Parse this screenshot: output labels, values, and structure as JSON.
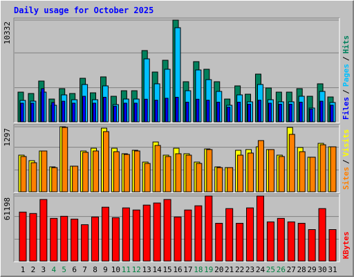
{
  "title": "Daily usage for October 2025",
  "chart_data": [
    {
      "type": "bar",
      "ylim": [
        0,
        10332
      ],
      "yticks": [
        10332
      ],
      "legend_separator": "/",
      "series": [
        {
          "name": "Hits",
          "color": "#00805c",
          "values": [
            3022,
            2882,
            4147,
            2319,
            3374,
            2882,
            4428,
            2952,
            4569,
            2601,
            3163,
            3163,
            7240,
            5061,
            6255,
            10332,
            4077,
            6115,
            5342,
            4077,
            2319,
            3655,
            2811,
            4850,
            3444,
            3022,
            3022,
            3374,
            2601,
            3866,
            2530
          ]
        },
        {
          "name": "Pages",
          "color": "#00c0ff",
          "values": [
            2179,
            2108,
            3022,
            1687,
            2741,
            2249,
            3795,
            2249,
            3655,
            1757,
            2319,
            2319,
            6396,
            3866,
            5342,
            9559,
            3163,
            5271,
            4288,
            3093,
            1687,
            2741,
            2038,
            3795,
            2249,
            2038,
            2038,
            2601,
            1406,
            3093,
            1968
          ]
        },
        {
          "name": "Files",
          "color": "#0000ff",
          "values": [
            1900,
            1900,
            3374,
            1970,
            2100,
            1900,
            2600,
            1900,
            2500,
            1600,
            1900,
            1900,
            2300,
            2200,
            2400,
            2500,
            2000,
            2300,
            2200,
            2000,
            1500,
            2000,
            1800,
            2200,
            1900,
            1800,
            1800,
            2000,
            1300,
            2100,
            1700
          ]
        }
      ]
    },
    {
      "type": "bar",
      "ylim": [
        0,
        1297
      ],
      "yticks": [
        1297
      ],
      "legend_separator": "/",
      "series": [
        {
          "name": "Visits",
          "color": "#ffff00",
          "values": [
            731,
            621,
            814,
            497,
            1297,
            511,
            814,
            869,
            1269,
            869,
            759,
            828,
            593,
            993,
            731,
            869,
            759,
            593,
            855,
            497,
            483,
            828,
            842,
            897,
            842,
            731,
            1283,
            883,
            690,
            966,
            897
          ]
        },
        {
          "name": "Sites",
          "color": "#ff8000",
          "values": [
            704,
            580,
            814,
            483,
            1283,
            511,
            787,
            814,
            1200,
            800,
            745,
            814,
            566,
            924,
            704,
            759,
            731,
            566,
            842,
            483,
            483,
            731,
            773,
            1021,
            842,
            704,
            1145,
            800,
            690,
            938,
            897
          ]
        }
      ]
    },
    {
      "type": "bar",
      "ylim": [
        0,
        61198
      ],
      "yticks": [
        61198
      ],
      "categories": [
        "1",
        "2",
        "3",
        "4",
        "5",
        "6",
        "7",
        "8",
        "9",
        "10",
        "11",
        "12",
        "13",
        "14",
        "15",
        "16",
        "17",
        "18",
        "19",
        "20",
        "21",
        "22",
        "23",
        "24",
        "25",
        "26",
        "27",
        "28",
        "29",
        "30",
        "31"
      ],
      "category_colors": [
        "#000000",
        "#000000",
        "#000000",
        "#008040",
        "#008040",
        "#000000",
        "#000000",
        "#000000",
        "#000000",
        "#000000",
        "#008040",
        "#008040",
        "#000000",
        "#000000",
        "#000000",
        "#000000",
        "#000000",
        "#008040",
        "#008040",
        "#000000",
        "#000000",
        "#000000",
        "#000000",
        "#000000",
        "#008040",
        "#008040",
        "#000000",
        "#000000",
        "#000000",
        "#000000",
        "#000000"
      ],
      "series": [
        {
          "name": "KBytes",
          "color": "#ff0000",
          "values": [
            46062,
            44746,
            57907,
            40140,
            42114,
            39482,
            34218,
            41456,
            50669,
            40798,
            50011,
            48035,
            52643,
            54617,
            57907,
            41456,
            48035,
            51985,
            61198,
            35534,
            49353,
            35534,
            50011,
            61198,
            36850,
            40140,
            36850,
            35534,
            29612,
            49353,
            29612
          ]
        }
      ]
    }
  ]
}
